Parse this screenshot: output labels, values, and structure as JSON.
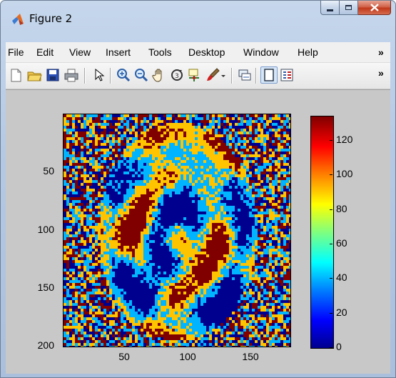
{
  "window": {
    "title": "Figure 2"
  },
  "menu": [
    "File",
    "Edit",
    "View",
    "Insert",
    "Tools",
    "Desktop",
    "Window",
    "Help"
  ],
  "menu_overflow": "»",
  "toolbar": {
    "buttons": [
      "new-figure-icon",
      "open-file-icon",
      "save-icon",
      "print-icon",
      "pointer-icon",
      "zoom-in-icon",
      "zoom-out-icon",
      "pan-hand-icon",
      "rotate-3d-icon",
      "data-cursor-icon",
      "brush-icon",
      "link-plot-icon",
      "hide-plot-tools-icon",
      "show-plot-tools-icon"
    ],
    "overflow": "»"
  },
  "plot": {
    "y_ticks": [
      "50",
      "100",
      "150",
      "200"
    ],
    "x_ticks": [
      "50",
      "100",
      "150"
    ]
  },
  "colorbar": {
    "ticks": [
      "0",
      "20",
      "40",
      "60",
      "80",
      "100",
      "120"
    ],
    "range": [
      0,
      134
    ],
    "colormap": "jet"
  },
  "chart_data": {
    "type": "heatmap",
    "x_ticks": [
      50,
      100,
      150
    ],
    "y_ticks": [
      50,
      100,
      150,
      200
    ],
    "xlim": [
      1,
      180
    ],
    "ylim": [
      1,
      200
    ],
    "y_direction": "reverse",
    "colorbar_ticks": [
      0,
      20,
      40,
      60,
      80,
      100,
      120
    ],
    "colorbar_range": [
      0,
      134
    ],
    "colormap": "jet",
    "dominant_values": [
      5,
      45,
      100,
      134
    ]
  }
}
